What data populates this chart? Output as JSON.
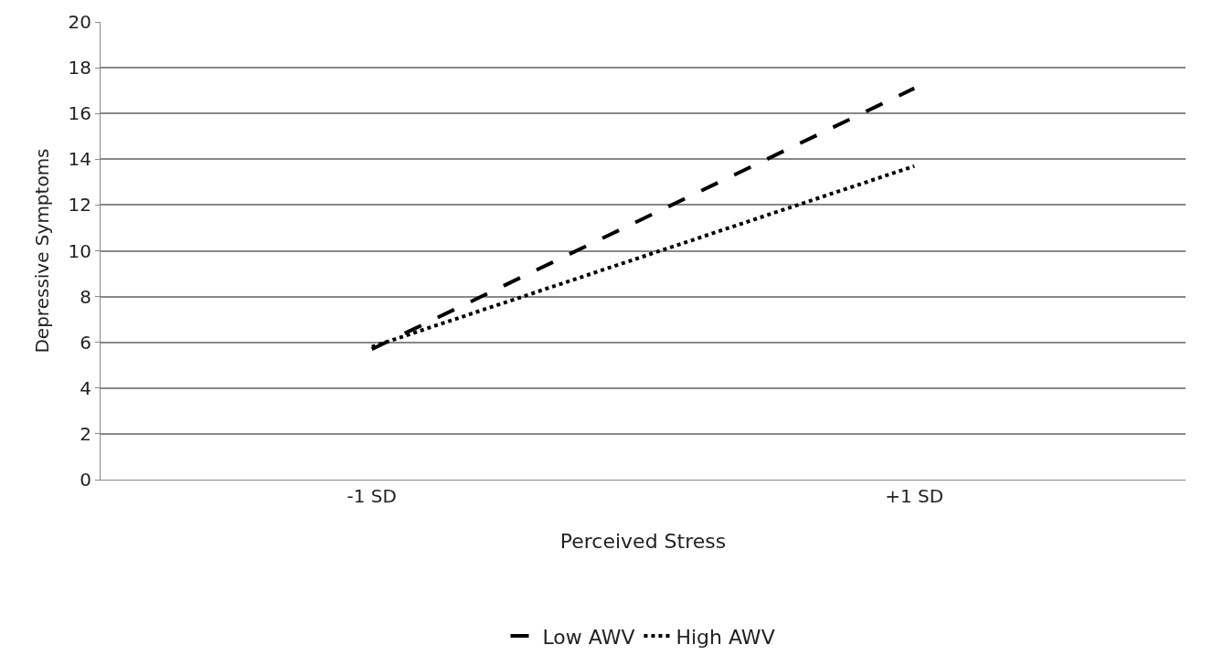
{
  "chart_data": {
    "type": "line",
    "xlabel": "Perceived Stress",
    "ylabel": "Depressive Symptoms",
    "categories": [
      "-1 SD",
      "+1 SD"
    ],
    "series": [
      {
        "name": "Low AWV",
        "color": "#000000",
        "line_style": "dashed",
        "values": [
          5.7,
          17.1
        ]
      },
      {
        "name": "High AWV",
        "color": "#000000",
        "line_style": "dotted",
        "values": [
          5.8,
          13.7
        ]
      }
    ],
    "ylim": [
      0,
      20
    ],
    "yticks": [
      0,
      2,
      4,
      6,
      8,
      10,
      12,
      14,
      16,
      18,
      20
    ],
    "grid": "y",
    "legend": "bottom",
    "marker": "none"
  }
}
